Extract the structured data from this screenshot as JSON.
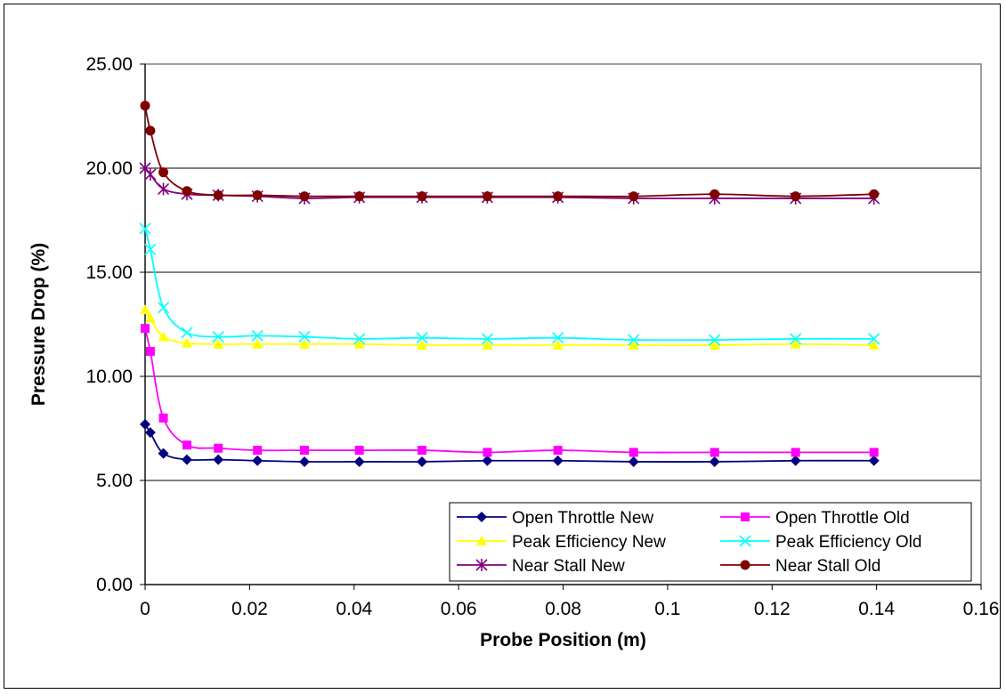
{
  "chart_data": {
    "type": "line",
    "title": "",
    "xlabel": "Probe Position (m)",
    "ylabel": "Pressure Drop (%)",
    "xlim": [
      0,
      0.16
    ],
    "ylim": [
      0,
      25
    ],
    "x_ticks": [
      "0",
      "0.02",
      "0.04",
      "0.06",
      "0.08",
      "0.1",
      "0.12",
      "0.14",
      "0.16"
    ],
    "y_ticks": [
      "0.00",
      "5.00",
      "10.00",
      "15.00",
      "20.00",
      "25.00"
    ],
    "grid": "horizontal",
    "legend_position": "bottom-right",
    "x": [
      0,
      0.001,
      0.0035,
      0.008,
      0.014,
      0.0215,
      0.0305,
      0.041,
      0.053,
      0.0655,
      0.079,
      0.0935,
      0.109,
      0.1245,
      0.1395
    ],
    "series": [
      {
        "name": "Open Throttle New",
        "color": "#000080",
        "marker": "diamond",
        "values": [
          7.7,
          7.3,
          6.3,
          6.0,
          6.0,
          5.95,
          5.9,
          5.9,
          5.9,
          5.95,
          5.95,
          5.9,
          5.9,
          5.95,
          5.95
        ]
      },
      {
        "name": "Open Throttle Old",
        "color": "#ff00ff",
        "marker": "square",
        "values": [
          12.3,
          11.2,
          8.0,
          6.7,
          6.55,
          6.45,
          6.45,
          6.45,
          6.45,
          6.35,
          6.45,
          6.35,
          6.35,
          6.35,
          6.35
        ]
      },
      {
        "name": "Peak Efficiency New",
        "color": "#ffff00",
        "marker": "triangle",
        "values": [
          13.2,
          12.8,
          11.9,
          11.6,
          11.55,
          11.55,
          11.55,
          11.55,
          11.5,
          11.5,
          11.5,
          11.5,
          11.5,
          11.55,
          11.5
        ]
      },
      {
        "name": "Peak Efficiency Old",
        "color": "#00ffff",
        "marker": "x",
        "values": [
          17.1,
          16.1,
          13.3,
          12.1,
          11.9,
          11.95,
          11.9,
          11.8,
          11.85,
          11.8,
          11.85,
          11.75,
          11.75,
          11.8,
          11.8
        ]
      },
      {
        "name": "Near Stall New",
        "color": "#800080",
        "marker": "star",
        "values": [
          20.0,
          19.7,
          19.0,
          18.75,
          18.7,
          18.65,
          18.55,
          18.6,
          18.6,
          18.6,
          18.6,
          18.55,
          18.55,
          18.55,
          18.55
        ]
      },
      {
        "name": "Near Stall Old",
        "color": "#800000",
        "marker": "circle",
        "values": [
          23.0,
          21.8,
          19.8,
          18.9,
          18.7,
          18.7,
          18.65,
          18.65,
          18.65,
          18.65,
          18.65,
          18.65,
          18.75,
          18.65,
          18.75
        ]
      }
    ]
  }
}
